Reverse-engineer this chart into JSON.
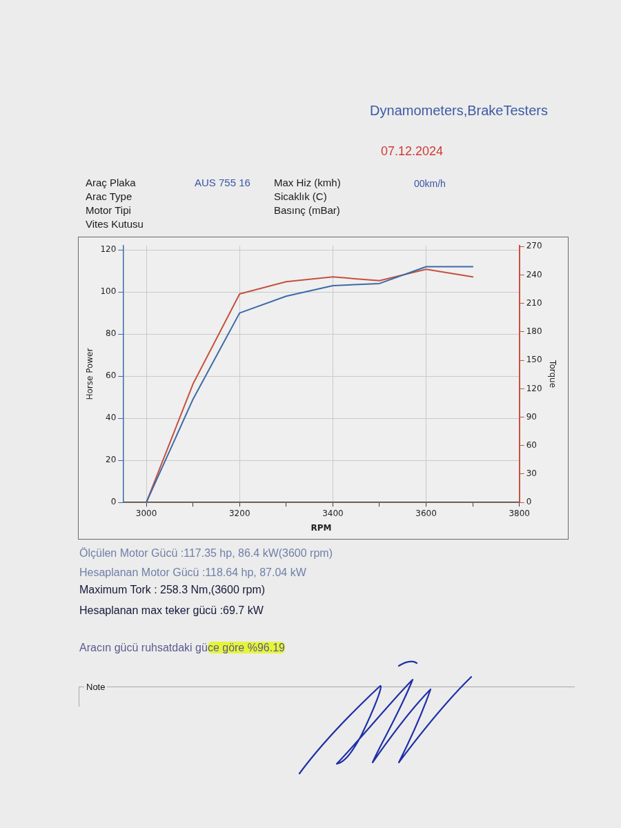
{
  "chart_data": {
    "type": "line",
    "title": "Dynamometers,BrakeTesters",
    "subtitle": "07.12.2024",
    "xlabel": "RPM",
    "ylabel": "Horse Power",
    "y2label": "Torque",
    "x": [
      3000,
      3100,
      3200,
      3300,
      3400,
      3500,
      3600,
      3700
    ],
    "series": [
      {
        "color": "#3a6aa8",
        "values": [
          0,
          49,
          90,
          98,
          103,
          104,
          112,
          112
        ]
      },
      {
        "color": "#c5503f",
        "axis": "y2",
        "values": [
          0,
          125,
          220,
          233,
          238,
          234,
          246,
          238
        ]
      }
    ],
    "xlim": [
      2950,
      3800
    ],
    "xticks": [
      3000,
      {
        "value": 3100,
        "label": null
      },
      3200,
      {
        "value": 3300,
        "label": null
      },
      3400,
      {
        "value": 3500,
        "label": null
      },
      3600,
      {
        "value": 3700,
        "label": null
      },
      3800
    ],
    "ylim": [
      0,
      122
    ],
    "yticks": [
      0,
      20,
      40,
      60,
      80,
      100,
      120
    ],
    "y2lim": [
      0,
      271
    ],
    "y2ticks": [
      0,
      30,
      60,
      90,
      120,
      150,
      180,
      210,
      240,
      270
    ],
    "grid": true,
    "marker": "none",
    "annotations": [
      "Araç Plaka",
      "AUS 755 16",
      "Max Hiz (kmh)",
      "00km/h",
      "Arac Type",
      "Sicaklık (C)",
      "Motor Tipi",
      "Basınç (mBar)",
      "Vites Kutusu",
      "Ölçülen Motor Gücü :117.35 hp, 86.4 kW(3600 rpm)",
      "Hesaplanan Motor Gücü :118.64 hp, 87.04 kW",
      "Maximum Tork : 258.3 Nm,(3600 rpm)",
      "Hesaplanan max teker gücü :69.7 kW",
      "Aracın gücü ruhsatdaki güce göre %96.19",
      "Note"
    ]
  }
}
